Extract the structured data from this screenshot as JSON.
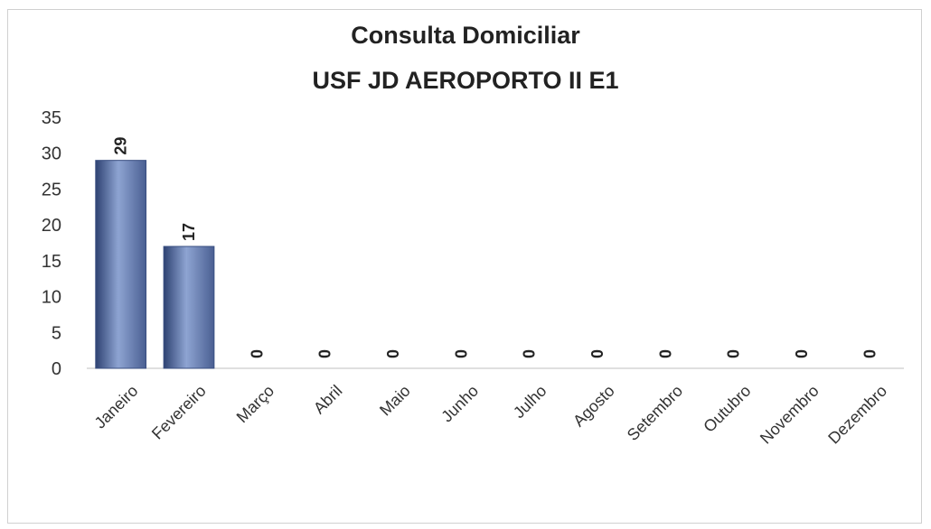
{
  "chart_data": {
    "type": "bar",
    "title": "Consulta Domiciliar",
    "subtitle": "USF JD AEROPORTO II E1",
    "categories": [
      "Janeiro",
      "Fevereiro",
      "Março",
      "Abril",
      "Maio",
      "Junho",
      "Julho",
      "Agosto",
      "Setembro",
      "Outubro",
      "Novembro",
      "Dezembro"
    ],
    "values": [
      29,
      17,
      0,
      0,
      0,
      0,
      0,
      0,
      0,
      0,
      0,
      0
    ],
    "ylim": [
      0,
      35
    ],
    "yticks": [
      0,
      5,
      10,
      15,
      20,
      25,
      30,
      35
    ],
    "grid": false,
    "legend": "none",
    "bar_color": "#5b74a8",
    "data_labels": true
  }
}
